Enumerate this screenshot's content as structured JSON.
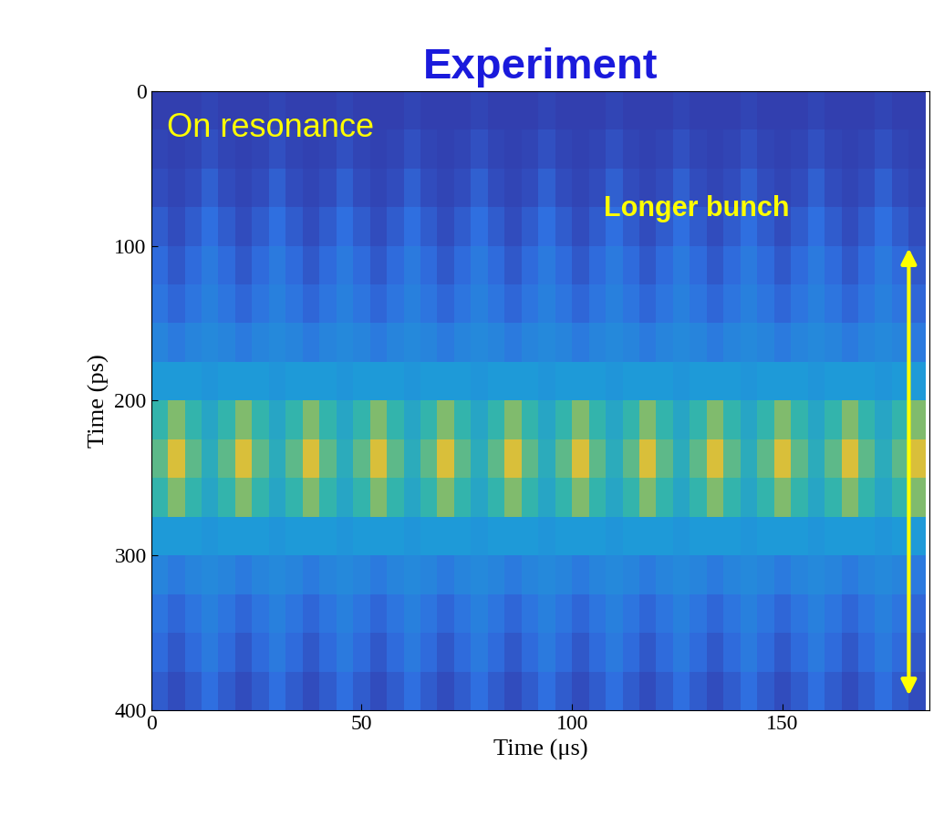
{
  "chart_data": {
    "type": "heatmap",
    "title": "Experiment",
    "annotations": [
      "On resonance",
      "Longer bunch"
    ],
    "x_label": "Time (μs)",
    "y_label": "Time (ps)",
    "x": [
      2,
      6,
      10,
      14,
      18,
      22,
      26,
      30,
      34,
      38,
      42,
      46,
      50,
      54,
      58,
      62,
      66,
      70,
      74,
      78,
      82,
      86,
      90,
      94,
      98,
      102,
      106,
      110,
      114,
      118,
      122,
      126,
      130,
      134,
      138,
      142,
      146,
      150,
      154,
      158,
      162,
      166,
      170,
      174,
      178,
      182
    ],
    "y": [
      12.5,
      37.5,
      62.5,
      87.5,
      112.5,
      137.5,
      162.5,
      187.5,
      212.5,
      237.5,
      262.5,
      287.5,
      312.5,
      337.5,
      362.5,
      387.5
    ],
    "cells": [
      [
        0.05,
        0.05,
        0.05,
        0.08,
        0.05,
        0.05,
        0.05,
        0.08,
        0.05,
        0.05,
        0.05,
        0.08,
        0.05,
        0.05,
        0.05,
        0.08,
        0.05,
        0.05,
        0.05,
        0.08,
        0.05,
        0.05,
        0.05,
        0.08,
        0.05,
        0.05,
        0.05,
        0.08,
        0.05,
        0.05,
        0.05,
        0.08,
        0.05,
        0.05,
        0.05,
        0.08,
        0.05,
        0.05,
        0.05,
        0.08,
        0.05,
        0.05,
        0.05,
        0.08,
        0.05,
        0.05
      ],
      [
        0.08,
        0.06,
        0.08,
        0.14,
        0.08,
        0.06,
        0.08,
        0.14,
        0.08,
        0.06,
        0.08,
        0.14,
        0.08,
        0.06,
        0.08,
        0.14,
        0.08,
        0.06,
        0.08,
        0.14,
        0.08,
        0.06,
        0.08,
        0.14,
        0.08,
        0.06,
        0.08,
        0.14,
        0.08,
        0.06,
        0.08,
        0.14,
        0.08,
        0.06,
        0.08,
        0.14,
        0.08,
        0.06,
        0.08,
        0.14,
        0.08,
        0.06,
        0.08,
        0.14,
        0.08,
        0.06
      ],
      [
        0.12,
        0.08,
        0.12,
        0.22,
        0.12,
        0.08,
        0.12,
        0.22,
        0.12,
        0.08,
        0.12,
        0.22,
        0.12,
        0.08,
        0.12,
        0.22,
        0.12,
        0.08,
        0.12,
        0.22,
        0.12,
        0.08,
        0.12,
        0.22,
        0.12,
        0.08,
        0.12,
        0.22,
        0.12,
        0.08,
        0.12,
        0.22,
        0.12,
        0.08,
        0.12,
        0.22,
        0.12,
        0.08,
        0.12,
        0.22,
        0.12,
        0.08,
        0.12,
        0.22,
        0.12,
        0.08
      ],
      [
        0.2,
        0.12,
        0.2,
        0.3,
        0.2,
        0.12,
        0.2,
        0.3,
        0.2,
        0.12,
        0.2,
        0.3,
        0.2,
        0.12,
        0.2,
        0.3,
        0.2,
        0.12,
        0.2,
        0.3,
        0.2,
        0.12,
        0.2,
        0.3,
        0.2,
        0.12,
        0.2,
        0.3,
        0.2,
        0.12,
        0.2,
        0.3,
        0.2,
        0.12,
        0.2,
        0.3,
        0.2,
        0.12,
        0.2,
        0.3,
        0.2,
        0.12,
        0.2,
        0.3,
        0.2,
        0.12
      ],
      [
        0.28,
        0.18,
        0.28,
        0.35,
        0.28,
        0.18,
        0.28,
        0.35,
        0.28,
        0.18,
        0.28,
        0.35,
        0.28,
        0.18,
        0.28,
        0.35,
        0.28,
        0.18,
        0.28,
        0.35,
        0.28,
        0.18,
        0.28,
        0.35,
        0.28,
        0.18,
        0.28,
        0.35,
        0.28,
        0.18,
        0.28,
        0.35,
        0.28,
        0.18,
        0.28,
        0.35,
        0.28,
        0.18,
        0.28,
        0.35,
        0.28,
        0.18,
        0.28,
        0.35,
        0.28,
        0.18
      ],
      [
        0.33,
        0.25,
        0.33,
        0.38,
        0.33,
        0.25,
        0.33,
        0.38,
        0.33,
        0.25,
        0.33,
        0.38,
        0.33,
        0.25,
        0.33,
        0.38,
        0.33,
        0.25,
        0.33,
        0.38,
        0.33,
        0.25,
        0.33,
        0.38,
        0.33,
        0.25,
        0.33,
        0.38,
        0.33,
        0.25,
        0.33,
        0.38,
        0.33,
        0.25,
        0.33,
        0.38,
        0.33,
        0.25,
        0.33,
        0.38,
        0.33,
        0.25,
        0.33,
        0.38,
        0.33,
        0.25
      ],
      [
        0.4,
        0.35,
        0.4,
        0.42,
        0.4,
        0.35,
        0.4,
        0.42,
        0.4,
        0.35,
        0.4,
        0.42,
        0.4,
        0.35,
        0.4,
        0.42,
        0.4,
        0.35,
        0.4,
        0.42,
        0.4,
        0.35,
        0.4,
        0.42,
        0.4,
        0.35,
        0.4,
        0.42,
        0.4,
        0.35,
        0.4,
        0.42,
        0.4,
        0.35,
        0.4,
        0.42,
        0.4,
        0.35,
        0.4,
        0.42,
        0.4,
        0.35,
        0.4,
        0.42,
        0.4,
        0.35
      ],
      [
        0.5,
        0.5,
        0.5,
        0.48,
        0.5,
        0.5,
        0.5,
        0.48,
        0.5,
        0.5,
        0.5,
        0.48,
        0.5,
        0.5,
        0.5,
        0.48,
        0.5,
        0.5,
        0.5,
        0.48,
        0.5,
        0.5,
        0.5,
        0.48,
        0.5,
        0.5,
        0.5,
        0.48,
        0.5,
        0.5,
        0.5,
        0.48,
        0.5,
        0.5,
        0.5,
        0.48,
        0.5,
        0.5,
        0.5,
        0.48,
        0.5,
        0.5,
        0.5,
        0.48,
        0.5,
        0.5
      ],
      [
        0.68,
        0.8,
        0.68,
        0.58,
        0.68,
        0.8,
        0.68,
        0.58,
        0.68,
        0.8,
        0.68,
        0.58,
        0.68,
        0.8,
        0.68,
        0.58,
        0.68,
        0.8,
        0.68,
        0.58,
        0.68,
        0.8,
        0.68,
        0.58,
        0.68,
        0.8,
        0.68,
        0.58,
        0.68,
        0.8,
        0.68,
        0.58,
        0.68,
        0.8,
        0.68,
        0.58,
        0.68,
        0.8,
        0.68,
        0.58,
        0.68,
        0.8,
        0.68,
        0.58,
        0.68,
        0.8
      ],
      [
        0.75,
        0.95,
        0.75,
        0.62,
        0.75,
        0.95,
        0.75,
        0.62,
        0.75,
        0.95,
        0.75,
        0.62,
        0.75,
        0.95,
        0.75,
        0.62,
        0.75,
        0.95,
        0.75,
        0.62,
        0.75,
        0.95,
        0.75,
        0.62,
        0.75,
        0.95,
        0.75,
        0.62,
        0.75,
        0.95,
        0.75,
        0.62,
        0.75,
        0.95,
        0.75,
        0.62,
        0.75,
        0.95,
        0.75,
        0.62,
        0.75,
        0.95,
        0.75,
        0.62,
        0.75,
        0.95
      ],
      [
        0.68,
        0.8,
        0.68,
        0.58,
        0.68,
        0.8,
        0.68,
        0.58,
        0.68,
        0.8,
        0.68,
        0.58,
        0.68,
        0.8,
        0.68,
        0.58,
        0.68,
        0.8,
        0.68,
        0.58,
        0.68,
        0.8,
        0.68,
        0.58,
        0.68,
        0.8,
        0.68,
        0.58,
        0.68,
        0.8,
        0.68,
        0.58,
        0.68,
        0.8,
        0.68,
        0.58,
        0.68,
        0.8,
        0.68,
        0.58,
        0.68,
        0.8,
        0.68,
        0.58,
        0.68,
        0.8
      ],
      [
        0.5,
        0.5,
        0.5,
        0.48,
        0.5,
        0.5,
        0.5,
        0.48,
        0.5,
        0.5,
        0.5,
        0.48,
        0.5,
        0.5,
        0.5,
        0.48,
        0.5,
        0.5,
        0.5,
        0.48,
        0.5,
        0.5,
        0.5,
        0.48,
        0.5,
        0.5,
        0.5,
        0.48,
        0.5,
        0.5,
        0.5,
        0.48,
        0.5,
        0.5,
        0.5,
        0.48,
        0.5,
        0.5,
        0.5,
        0.48,
        0.5,
        0.5,
        0.5,
        0.48,
        0.5,
        0.5
      ],
      [
        0.4,
        0.35,
        0.4,
        0.42,
        0.4,
        0.35,
        0.4,
        0.42,
        0.4,
        0.35,
        0.4,
        0.42,
        0.4,
        0.35,
        0.4,
        0.42,
        0.4,
        0.35,
        0.4,
        0.42,
        0.4,
        0.35,
        0.4,
        0.42,
        0.4,
        0.35,
        0.4,
        0.42,
        0.4,
        0.35,
        0.4,
        0.42,
        0.4,
        0.35,
        0.4,
        0.42,
        0.4,
        0.35,
        0.4,
        0.42,
        0.4,
        0.35,
        0.4,
        0.42,
        0.4,
        0.35
      ],
      [
        0.33,
        0.25,
        0.33,
        0.38,
        0.33,
        0.25,
        0.33,
        0.38,
        0.33,
        0.25,
        0.33,
        0.38,
        0.33,
        0.25,
        0.33,
        0.38,
        0.33,
        0.25,
        0.33,
        0.38,
        0.33,
        0.25,
        0.33,
        0.38,
        0.33,
        0.25,
        0.33,
        0.38,
        0.33,
        0.25,
        0.33,
        0.38,
        0.33,
        0.25,
        0.33,
        0.38,
        0.33,
        0.25,
        0.33,
        0.38,
        0.33,
        0.25,
        0.33,
        0.38,
        0.33,
        0.25
      ],
      [
        0.28,
        0.18,
        0.28,
        0.35,
        0.28,
        0.18,
        0.28,
        0.35,
        0.28,
        0.18,
        0.28,
        0.35,
        0.28,
        0.18,
        0.28,
        0.35,
        0.28,
        0.18,
        0.28,
        0.35,
        0.28,
        0.18,
        0.28,
        0.35,
        0.28,
        0.18,
        0.28,
        0.35,
        0.28,
        0.18,
        0.28,
        0.35,
        0.28,
        0.18,
        0.28,
        0.35,
        0.28,
        0.18,
        0.28,
        0.35,
        0.28,
        0.18,
        0.28,
        0.35,
        0.28,
        0.18
      ],
      [
        0.2,
        0.12,
        0.2,
        0.3,
        0.2,
        0.12,
        0.2,
        0.3,
        0.2,
        0.12,
        0.2,
        0.3,
        0.2,
        0.12,
        0.2,
        0.3,
        0.2,
        0.12,
        0.2,
        0.3,
        0.2,
        0.12,
        0.2,
        0.3,
        0.2,
        0.12,
        0.2,
        0.3,
        0.2,
        0.12,
        0.2,
        0.3,
        0.2,
        0.12,
        0.2,
        0.3,
        0.2,
        0.12,
        0.2,
        0.3,
        0.2,
        0.12,
        0.2,
        0.3,
        0.2,
        0.12
      ]
    ],
    "color_range": [
      0,
      1
    ],
    "xlim": [
      0,
      185
    ],
    "ylim": [
      400,
      0
    ],
    "xticks": [
      0,
      50,
      100,
      150
    ],
    "yticks": [
      0,
      100,
      200,
      300,
      400
    ]
  }
}
